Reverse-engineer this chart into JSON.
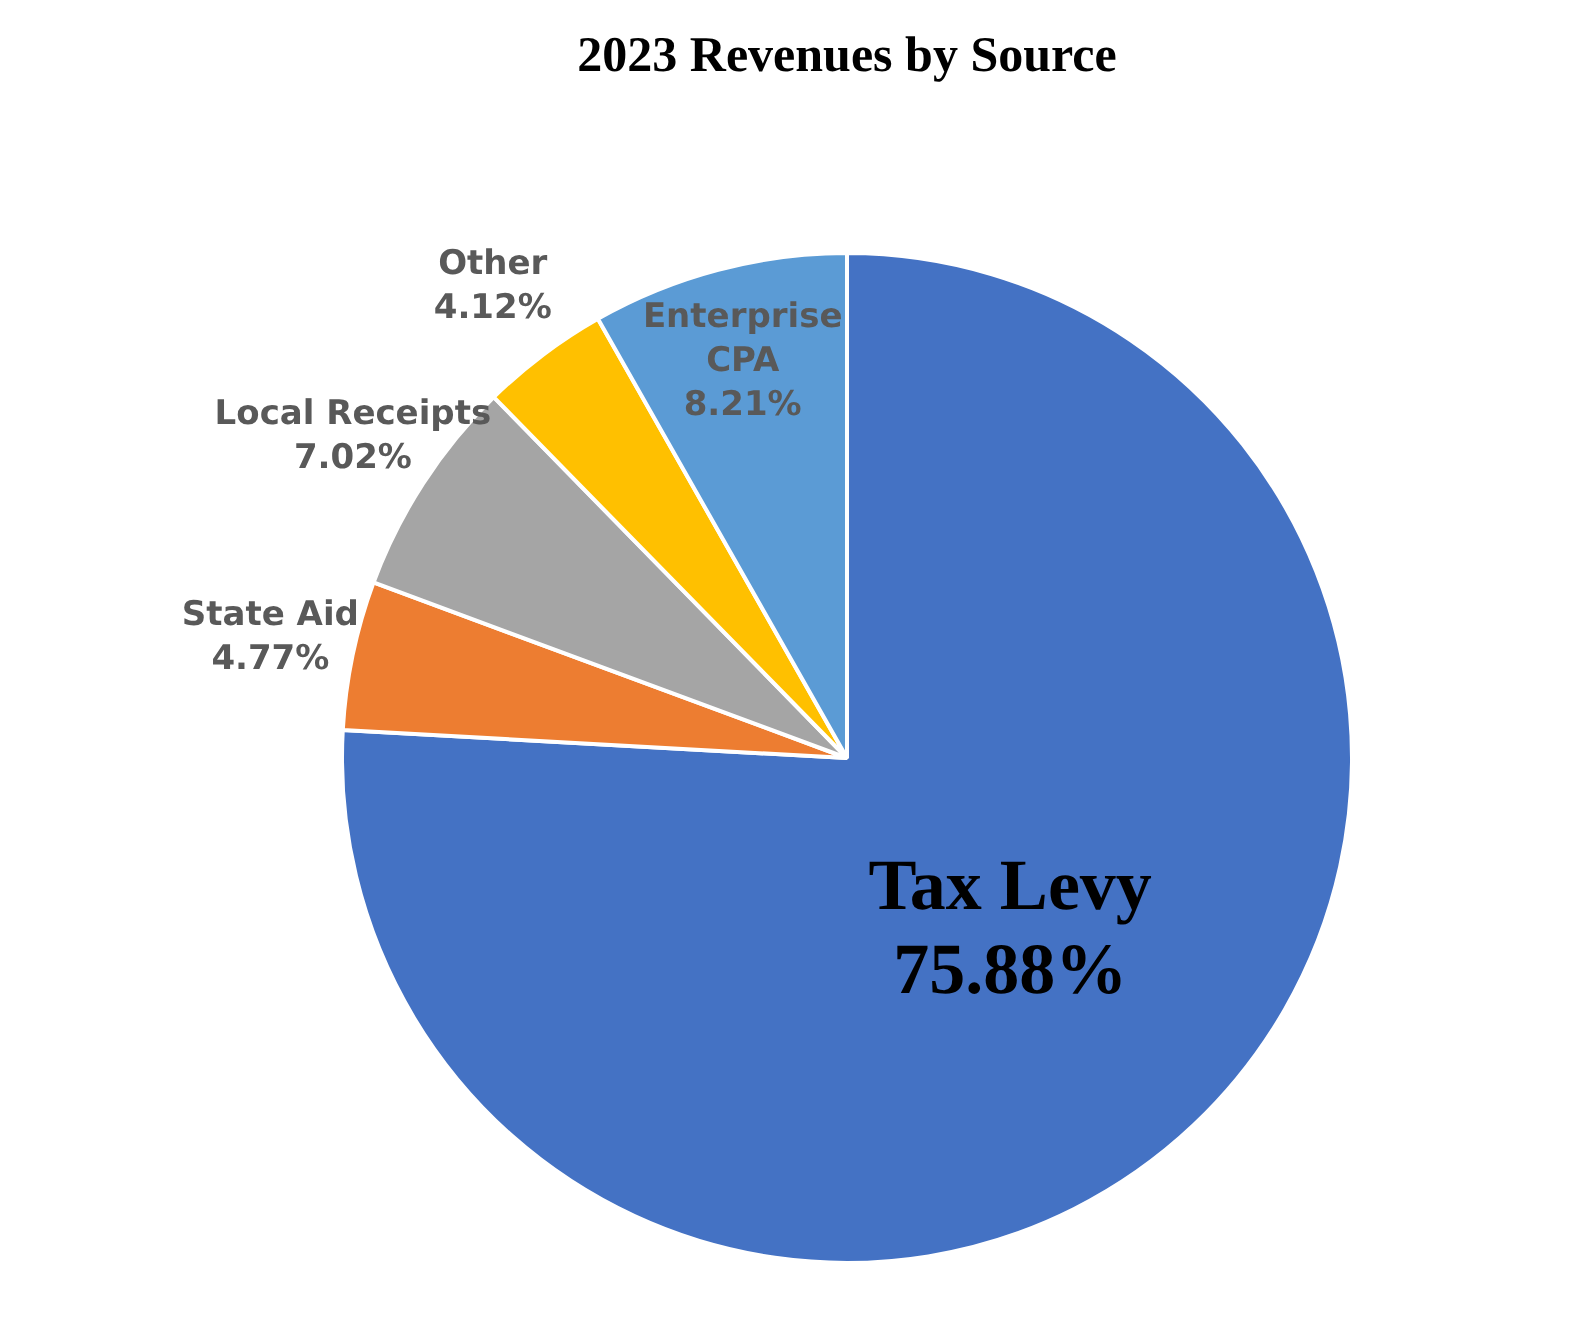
{
  "chart_data": {
    "type": "pie",
    "title": "2023 Revenues by Source",
    "categories": [
      "Tax Levy",
      "State Aid",
      "Local Receipts",
      "Other",
      "Enterprise CPA"
    ],
    "values": [
      75.88,
      4.77,
      7.02,
      4.12,
      8.21
    ],
    "colors": [
      "#4472c4",
      "#ed7d31",
      "#a5a5a5",
      "#ffc000",
      "#5b9bd5"
    ],
    "value_labels": [
      "75.88%",
      "4.77%",
      "7.02%",
      "4.12%",
      "8.21%"
    ],
    "legend": false
  }
}
